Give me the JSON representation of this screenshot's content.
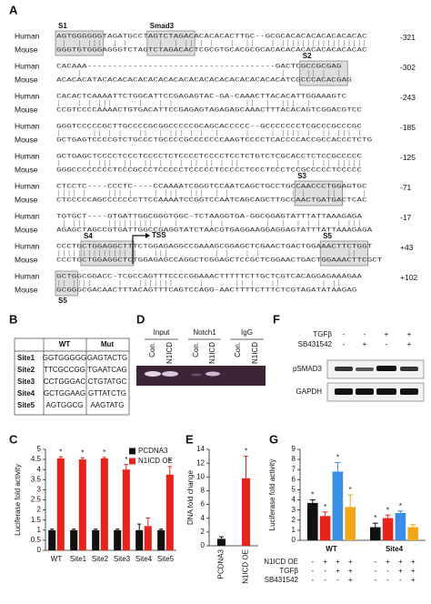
{
  "alignment": {
    "label": "A",
    "species": [
      "Human",
      "Mouse"
    ],
    "rows": [
      {
        "human": "AGTGGGGGGTAGATGCCTAGTCTAGACACACACACTTGC--GCGCACACACACACACACAC",
        "mouse": "GGGTGTGGGAGGGTCTAGTCTAGACACTCGCGTGCACGCGCACACACACACACACACACAC",
        "position": "-321"
      },
      {
        "human": "CACAAA-------------------------------------GACTCGCCGCGAG",
        "mouse": "ACACACATACACACACACACACACACACACACACACACACACACATCGCCCACACGAG",
        "position": "-302"
      },
      {
        "human": "CACACTCAAAATTCTGGCATTCCGAGAGTAC-GA-CAAACTTACACATTGGAAAGTC",
        "mouse": "CCGTCCCCAAAACTGTGACATTCCGAGAGTAGAGAGCAAACTTTACACAGTCGGACGTCC",
        "position": "-243"
      },
      {
        "human": "GGGTCCCCCGCTTGCCCCGCGGCCCCCGCAGCACCCCC--GCCCCCCCTCGCCCGCCCGC",
        "mouse": "GCTGAGTCCCCGTCTGCCCTGCCCCGCCCCCCCAAGTCCCCTCACCCCACCGCCACCCTCTG",
        "position": "-185"
      },
      {
        "human": "GCTGAGCTCCCCTCCCTCCCCTCTCCCCTCCCCTCCTCTGTCTCGCACCTCTCCGCCCCC",
        "mouse": "GGGCCCCCCCCTCCCGCCCTCCCCCTCCCCCTCCCCCTCCCTCCCTCCGCCCCCTCCCCC",
        "position": "-125"
      },
      {
        "human": "CTCCTC----CCCTC----CCAAAATCGGGTCCAATCAGCTGCCTGCCAACCCTGGAGTGC",
        "mouse": "CTCCCCCAGCCCCCCCTTCCAAAATCCGGTCCAATCAGCAGCTTGCCAACTGATGACTCAC",
        "position": "-71"
      },
      {
        "human": "TGTGCT----GTGATTGGCGGGTGGC-TCTAAGGTGA-GGCGGAGTATTTATTAAAGAGA",
        "mouse": "AGAGCTAGCCGTGATTGGCCGAGGTATCTAACGTGAGGAAGGAGGAGTATTTATTAAAGAGA",
        "position": "-17"
      },
      {
        "human": "CCCTGCTGGAGGCTTTCTGGAGAGGCCGAAAGCGGAGCTCGAACTGACTGGAAACTTCTGGT",
        "mouse": "CCCTGCTGGAGGCTCTGGAGAGCCAGGCTCGGAGCTCCGCTCGGAACTGACTGGAAACTTCGCT",
        "position": "+43"
      },
      {
        "human": "GCTGGCGGACC-TCGCCAGTTTCCCCGGAAACTTTTTCTTGCTCGTCACAGGAGAAAGAA",
        "mouse": "GCGGGCGACAACTTTACAGTTTCAGTCCAGG-AACTTTTCTTTCTCGTAGATATAAGAG",
        "position": "+102"
      }
    ],
    "motifs": [
      "S1",
      "Smad3",
      "S2",
      "S3",
      "S4",
      "S5",
      "S5"
    ],
    "tss": "TSS"
  },
  "table": {
    "label": "B",
    "header": [
      "WT",
      "Mut"
    ],
    "rows": [
      [
        "Site1",
        "GGTGGGGG",
        "GAGTACTG"
      ],
      [
        "Site2",
        "TTCGCCGG",
        "TGAATCAG"
      ],
      [
        "Site3",
        "CCTGGGAC",
        "CTGTATGC"
      ],
      [
        "Site4",
        "GCTGGAAG",
        "GTTATCTG"
      ],
      [
        "Site5",
        "AGTGGCG",
        "AAGTATG"
      ]
    ]
  },
  "gel": {
    "label": "D",
    "groups": [
      "Input",
      "Notch1",
      "IgG"
    ],
    "lanes": [
      "Con.",
      "N1ICD",
      "Con.",
      "N1ICD",
      "Con.",
      "N1ICD"
    ]
  },
  "blot": {
    "label": "F",
    "conditions": [
      {
        "name": "TGFβ",
        "signs": [
          "-",
          "-",
          "+",
          "+"
        ]
      },
      {
        "name": "SB431542",
        "signs": [
          "-",
          "+",
          "-",
          "+"
        ]
      }
    ],
    "bands": [
      "pSMAD3",
      "GAPDH"
    ]
  },
  "chart_data": [
    {
      "type": "bar",
      "panel": "C",
      "ylabel": "Luciferase fold activity",
      "categories": [
        "WT",
        "Site1",
        "Site2",
        "Site3",
        "Site4",
        "Site5"
      ],
      "series": [
        {
          "name": "PCDNA3",
          "color": "#111111",
          "values": [
            1,
            1,
            1,
            1,
            1,
            1
          ],
          "errors": [
            0.05,
            0.05,
            0.05,
            0.05,
            0.3,
            0.05
          ]
        },
        {
          "name": "N1ICD OE",
          "color": "#e8231c",
          "values": [
            4.55,
            4.5,
            4.55,
            4.0,
            1.2,
            3.75
          ],
          "errors": [
            0.08,
            0.08,
            0.05,
            0.25,
            0.4,
            0.4
          ],
          "labels": [
            "*",
            "*",
            "*",
            "*",
            null,
            "*"
          ]
        }
      ],
      "ylim": [
        0,
        5
      ],
      "yticks": [
        0,
        0.5,
        1,
        1.5,
        2,
        2.5,
        3,
        3.5,
        4,
        4.5,
        5
      ],
      "legend": "top-right"
    },
    {
      "type": "bar",
      "panel": "E",
      "ylabel": "DNA fold change",
      "categories": [
        "PCDNA3",
        "N1ICD OE"
      ],
      "series": [
        {
          "colors": [
            "#111111",
            "#e8231c"
          ],
          "values": [
            1,
            9.8
          ],
          "errors": [
            0.3,
            3.2
          ],
          "labels": [
            null,
            "*"
          ]
        }
      ],
      "ylim": [
        0,
        14
      ],
      "yticks": [
        0,
        2,
        4,
        6,
        8,
        10,
        12,
        14
      ],
      "rotate_labels": true
    },
    {
      "type": "bar",
      "panel": "G",
      "ylabel": "Luciferase fold activity",
      "categories": [
        "WT",
        "Site4"
      ],
      "series": [
        {
          "color": "#111111",
          "values": [
            3.7,
            1.3
          ],
          "errors": [
            0.3,
            0.4
          ],
          "labels": [
            "*",
            "*"
          ]
        },
        {
          "color": "#e8231c",
          "values": [
            2.4,
            2.2
          ],
          "errors": [
            0.4,
            0.3
          ],
          "labels": [
            "*",
            "*"
          ]
        },
        {
          "color": "#3a8ee6",
          "values": [
            6.8,
            2.7
          ],
          "errors": [
            0.9,
            0.2
          ],
          "labels": [
            "*",
            "*"
          ]
        },
        {
          "color": "#f0a818",
          "values": [
            3.3,
            1.3
          ],
          "errors": [
            1.2,
            0.25
          ],
          "labels": [
            "*",
            null
          ]
        }
      ],
      "ylim": [
        0,
        9
      ],
      "yticks": [
        0,
        1,
        2,
        3,
        4,
        5,
        6,
        7,
        8,
        9
      ],
      "conditions": [
        {
          "name": "N1ICD OE",
          "signs": [
            "-",
            "+",
            "+",
            "+",
            "-",
            "+",
            "+",
            "+"
          ]
        },
        {
          "name": "TGFβ",
          "signs": [
            "-",
            "-",
            "+",
            "+",
            "-",
            "-",
            "+",
            "+"
          ]
        },
        {
          "name": "SB431542",
          "signs": [
            "-",
            "-",
            "-",
            "+",
            "-",
            "-",
            "-",
            "+"
          ]
        }
      ]
    }
  ]
}
